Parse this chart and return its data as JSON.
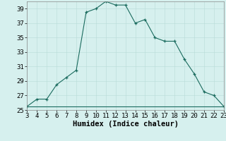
{
  "x": [
    3,
    4,
    5,
    6,
    7,
    8,
    9,
    10,
    11,
    12,
    13,
    14,
    15,
    16,
    17,
    18,
    19,
    20,
    21,
    22,
    23
  ],
  "y": [
    25.5,
    26.5,
    26.5,
    28.5,
    29.5,
    30.5,
    38.5,
    39.0,
    40.0,
    39.5,
    39.5,
    37.0,
    37.5,
    35.0,
    34.5,
    34.5,
    32.0,
    30.0,
    27.5,
    27.0,
    25.5
  ],
  "baseline_y": 25.5,
  "line_color": "#1a6b5e",
  "marker_color": "#1a6b5e",
  "bg_color": "#d6f0ee",
  "grid_color": "#b8dbd8",
  "xlabel": "Humidex (Indice chaleur)",
  "xlim": [
    3,
    23
  ],
  "ylim": [
    25,
    40
  ],
  "xticks": [
    3,
    4,
    5,
    6,
    7,
    8,
    9,
    10,
    11,
    12,
    13,
    14,
    15,
    16,
    17,
    18,
    19,
    20,
    21,
    22,
    23
  ],
  "yticks": [
    25,
    27,
    29,
    31,
    33,
    35,
    37,
    39
  ],
  "xlabel_fontsize": 7.5,
  "tick_fontsize": 6.5
}
